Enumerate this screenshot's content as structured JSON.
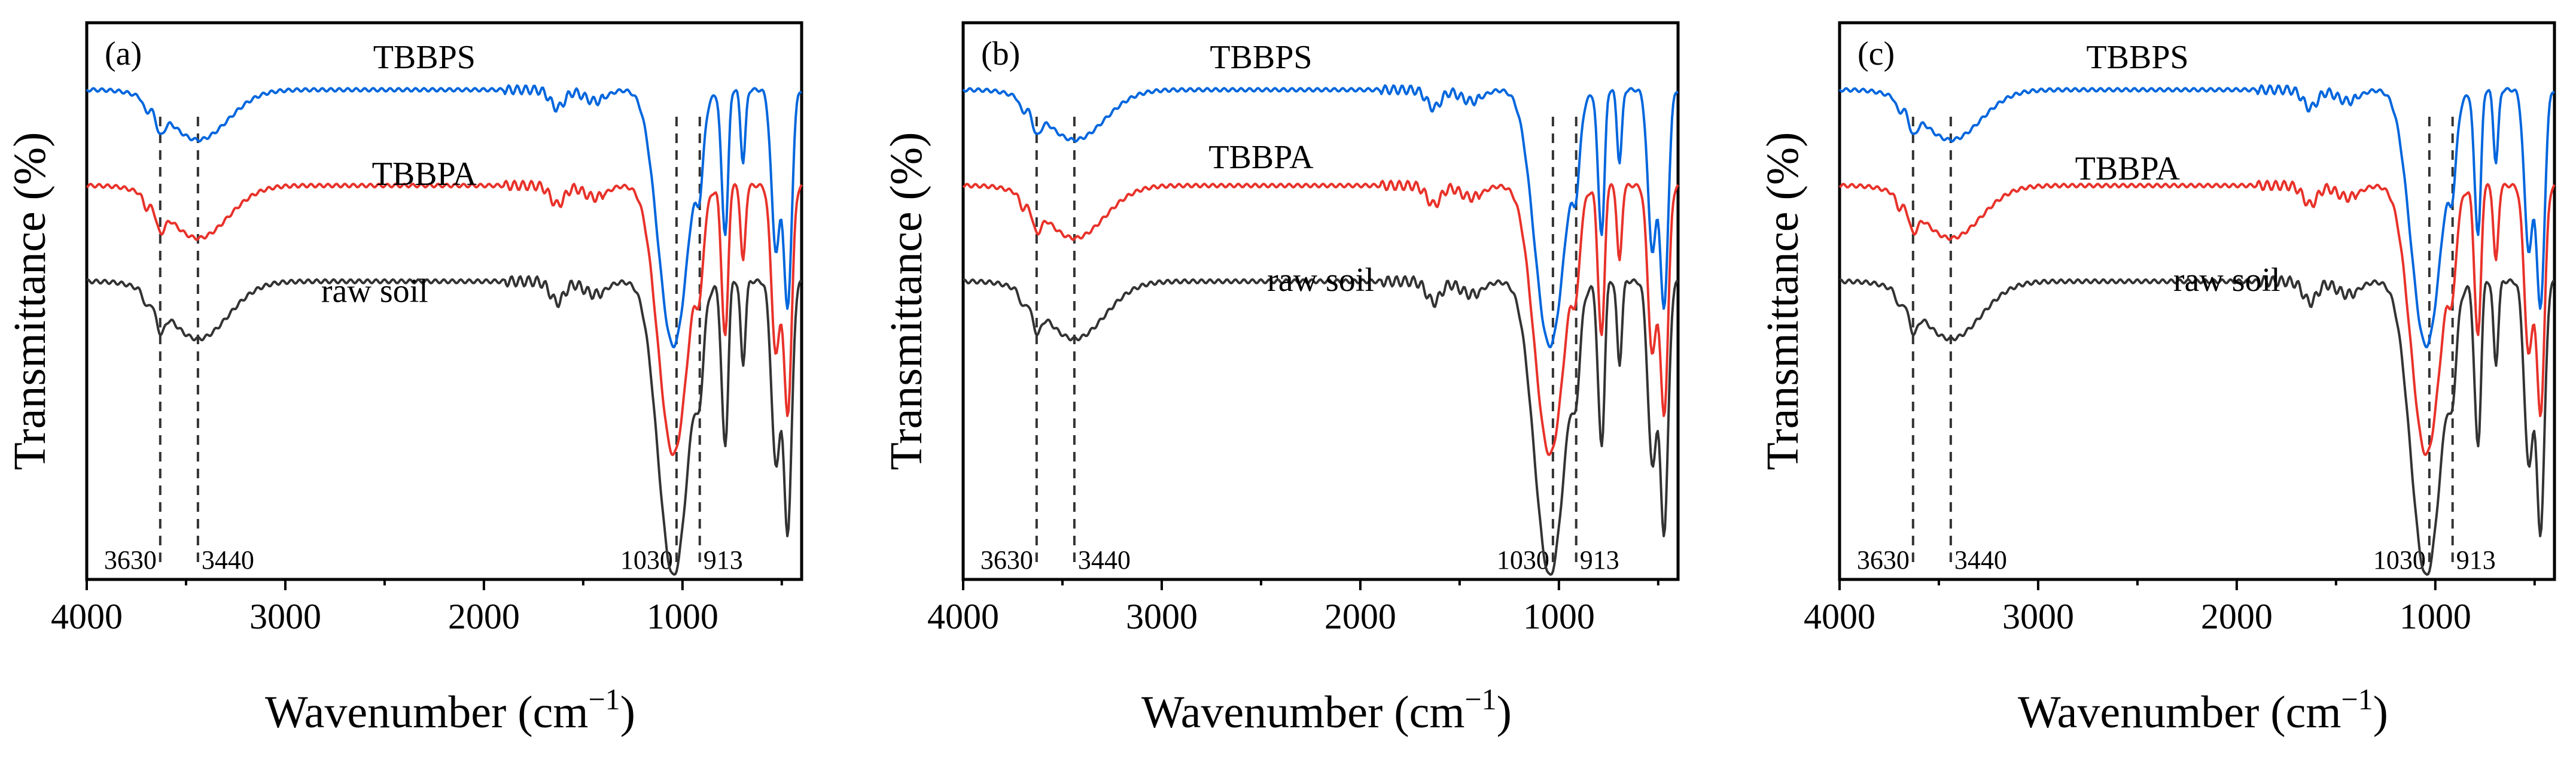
{
  "chart_data": [
    {
      "type": "line",
      "panel_label": "(a)",
      "xlabel": "Wavenumber (cm",
      "xlabel_sup": "−1",
      "xlabel_close": ")",
      "ylabel": "Transmittance (%)",
      "xlim": [
        4000,
        400
      ],
      "x_ticks": [
        4000,
        3000,
        2000,
        1000
      ],
      "x_tick_labels": [
        "4000",
        "3000",
        "2000",
        "1000"
      ],
      "ref_lines": [
        {
          "x": 3630,
          "label": "3630"
        },
        {
          "x": 3440,
          "label": "3440"
        },
        {
          "x": 1030,
          "label": "1030"
        },
        {
          "x": 913,
          "label": "913"
        }
      ],
      "series": [
        {
          "name": "TBBPS",
          "color": "#0066dd",
          "offset": 0.0
        },
        {
          "name": "TBBPA",
          "color": "#e8322a",
          "offset": 0.56
        },
        {
          "name": "raw soil",
          "color": "#333333",
          "offset": 1.12
        }
      ],
      "series_label_positions": [
        {
          "x": 2300,
          "y": 0.06
        },
        {
          "x": 2300,
          "y": 0.27
        },
        {
          "x": 2550,
          "y": 0.48
        }
      ]
    },
    {
      "type": "line",
      "panel_label": "(b)",
      "xlabel": "Wavenumber (cm",
      "xlabel_sup": "−1",
      "xlabel_close": ")",
      "ylabel": "Transmittance (%)",
      "xlim": [
        4000,
        400
      ],
      "x_ticks": [
        4000,
        3000,
        2000,
        1000
      ],
      "x_tick_labels": [
        "4000",
        "3000",
        "2000",
        "1000"
      ],
      "ref_lines": [
        {
          "x": 3630,
          "label": "3630"
        },
        {
          "x": 3440,
          "label": "3440"
        },
        {
          "x": 1030,
          "label": "1030"
        },
        {
          "x": 913,
          "label": "913"
        }
      ],
      "series": [
        {
          "name": "TBBPS",
          "color": "#0066dd",
          "offset": 0.0
        },
        {
          "name": "TBBPA",
          "color": "#e8322a",
          "offset": 0.38
        },
        {
          "name": "raw soil",
          "color": "#333333",
          "offset": 0.78
        }
      ],
      "series_label_positions": [
        {
          "x": 2500,
          "y": 0.06
        },
        {
          "x": 2500,
          "y": 0.24
        },
        {
          "x": 2200,
          "y": 0.46
        }
      ]
    },
    {
      "type": "line",
      "panel_label": "(c)",
      "xlabel": "Wavenumber (cm",
      "xlabel_sup": "−1",
      "xlabel_close": ")",
      "ylabel": "Transmittance (%)",
      "xlim": [
        4000,
        400
      ],
      "x_ticks": [
        4000,
        3000,
        2000,
        1000
      ],
      "x_tick_labels": [
        "4000",
        "3000",
        "2000",
        "1000"
      ],
      "ref_lines": [
        {
          "x": 3630,
          "label": "3630"
        },
        {
          "x": 3440,
          "label": "3440"
        },
        {
          "x": 1030,
          "label": "1030"
        },
        {
          "x": 913,
          "label": "913"
        }
      ],
      "series": [
        {
          "name": "TBBPS",
          "color": "#0066dd",
          "offset": 0.0
        },
        {
          "name": "TBBPA",
          "color": "#e8322a",
          "offset": 0.36
        },
        {
          "name": "raw soil",
          "color": "#333333",
          "offset": 0.72
        }
      ],
      "series_label_positions": [
        {
          "x": 2500,
          "y": 0.06
        },
        {
          "x": 2550,
          "y": 0.26
        },
        {
          "x": 2050,
          "y": 0.46
        }
      ]
    }
  ]
}
